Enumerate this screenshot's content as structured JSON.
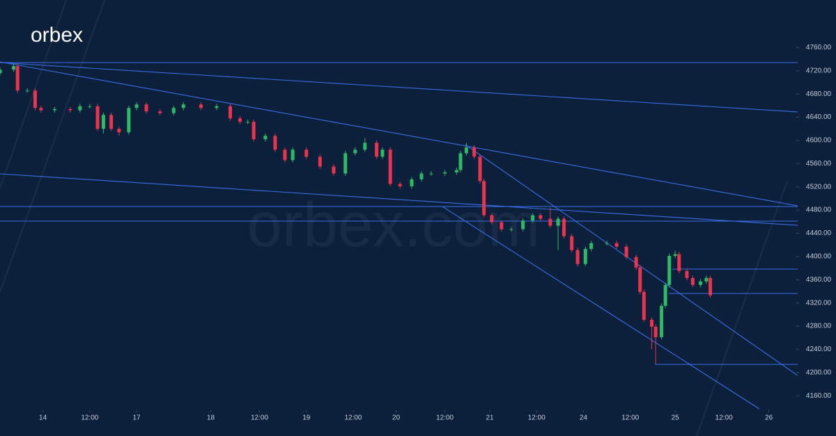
{
  "logo": "orbex",
  "watermark": "orbex.com",
  "chart_data": {
    "type": "candlestick",
    "up_color": "#2fb865",
    "down_color": "#e8344e",
    "xlim": [
      -11,
      192.5
    ],
    "ylim": [
      4135,
      4842
    ],
    "xticks": [
      {
        "value": 0,
        "label": "14"
      },
      {
        "value": 12,
        "label": "12:00"
      },
      {
        "value": 24,
        "label": "17"
      },
      {
        "value": 43,
        "label": "18"
      },
      {
        "value": 55.5,
        "label": "12:00"
      },
      {
        "value": 67.5,
        "label": "19"
      },
      {
        "value": 79.5,
        "label": "12:00"
      },
      {
        "value": 90.5,
        "label": "20"
      },
      {
        "value": 103,
        "label": "12:00"
      },
      {
        "value": 114.5,
        "label": "21"
      },
      {
        "value": 126.5,
        "label": "12:00"
      },
      {
        "value": 138.5,
        "label": "24"
      },
      {
        "value": 150.5,
        "label": "12:00"
      },
      {
        "value": 162,
        "label": "25"
      },
      {
        "value": 174.5,
        "label": "12:00"
      },
      {
        "value": 186,
        "label": "26"
      }
    ],
    "yticks": [
      {
        "value": 4160,
        "label": "4160.00"
      },
      {
        "value": 4200,
        "label": "4200.00"
      },
      {
        "value": 4240,
        "label": "4240.00"
      },
      {
        "value": 4280,
        "label": "4280.00"
      },
      {
        "value": 4320,
        "label": "4320.00"
      },
      {
        "value": 4360,
        "label": "4360.00"
      },
      {
        "value": 4400,
        "label": "4400.00"
      },
      {
        "value": 4440,
        "label": "4440.00"
      },
      {
        "value": 4480,
        "label": "4480.00"
      },
      {
        "value": 4520,
        "label": "4520.00"
      },
      {
        "value": 4560,
        "label": "4560.00"
      },
      {
        "value": 4600,
        "label": "4600.00"
      },
      {
        "value": 4640,
        "label": "4640.00"
      },
      {
        "value": 4680,
        "label": "4680.00"
      },
      {
        "value": 4720,
        "label": "4720.00"
      },
      {
        "value": 4760,
        "label": "4760.00"
      }
    ],
    "x": [
      -11,
      -7.5,
      -6.5,
      -4,
      -2,
      -0.5,
      3,
      7,
      9.5,
      12,
      14,
      15.5,
      17.5,
      19.5,
      22,
      24,
      26.5,
      30,
      33.5,
      36,
      40.5,
      44.5,
      48,
      50.5,
      52.5,
      54,
      57,
      59.5,
      62,
      64,
      67.5,
      71,
      74.5,
      77.5,
      80,
      82.5,
      85.5,
      87,
      89,
      91.5,
      94.5,
      97,
      99.5,
      103,
      106,
      107,
      108.5,
      110.5,
      112,
      113,
      115,
      117.5,
      120,
      123,
      125.5,
      127.5,
      130,
      132,
      133.5,
      135.5,
      137,
      139,
      140.5,
      144.5,
      147,
      149.5,
      152,
      153,
      154,
      156,
      157,
      158.5,
      159.5,
      160.5,
      162,
      163,
      165,
      166.5,
      168.5,
      170,
      171
    ],
    "open": [
      4716,
      4722,
      4728,
      4686,
      4686,
      4656,
      4652,
      4654,
      4652,
      4659,
      4659,
      4620,
      4644,
      4620,
      4614,
      4656,
      4662,
      4650,
      4647,
      4656,
      4662,
      4656,
      4659,
      4638,
      4632,
      4632,
      4602,
      4608,
      4584,
      4566,
      4584,
      4572,
      4555,
      4543,
      4578,
      4584,
      4596,
      4572,
      4584,
      4525,
      4521,
      4533,
      4543,
      4543,
      4545,
      4549,
      4578,
      4588,
      4572,
      4530,
      4471,
      4459,
      4447,
      4447,
      4462,
      4471,
      4465,
      4453,
      4465,
      4435,
      4411,
      4387,
      4413,
      4423,
      4423,
      4417,
      4399,
      4381,
      4339,
      4291,
      4279,
      4261,
      4315,
      4351,
      4401,
      4404,
      4375,
      4363,
      4351,
      4357,
      4363
    ],
    "high": [
      4726,
      4732,
      4732,
      4690,
      4690,
      4660,
      4658,
      4658,
      4663,
      4663,
      4663,
      4648,
      4648,
      4624,
      4660,
      4666,
      4666,
      4654,
      4660,
      4666,
      4666,
      4663,
      4663,
      4642,
      4636,
      4636,
      4612,
      4612,
      4588,
      4588,
      4588,
      4576,
      4559,
      4582,
      4588,
      4604,
      4600,
      4588,
      4588,
      4529,
      4537,
      4547,
      4547,
      4549,
      4553,
      4582,
      4596,
      4592,
      4576,
      4534,
      4475,
      4463,
      4451,
      4466,
      4475,
      4475,
      4484,
      4469,
      4469,
      4439,
      4415,
      4417,
      4427,
      4427,
      4427,
      4421,
      4403,
      4385,
      4343,
      4295,
      4283,
      4319,
      4355,
      4405,
      4410,
      4408,
      4379,
      4367,
      4361,
      4367,
      4367
    ],
    "low": [
      4712,
      4718,
      4682,
      4682,
      4652,
      4648,
      4648,
      4648,
      4648,
      4655,
      4616,
      4612,
      4616,
      4608,
      4610,
      4652,
      4646,
      4643,
      4643,
      4652,
      4652,
      4652,
      4634,
      4628,
      4628,
      4598,
      4598,
      4580,
      4562,
      4562,
      4568,
      4551,
      4539,
      4539,
      4574,
      4580,
      4568,
      4568,
      4521,
      4517,
      4517,
      4529,
      4539,
      4539,
      4541,
      4545,
      4574,
      4568,
      4526,
      4467,
      4455,
      4443,
      4443,
      4443,
      4458,
      4461,
      4449,
      4411,
      4431,
      4407,
      4383,
      4383,
      4409,
      4419,
      4413,
      4395,
      4377,
      4335,
      4287,
      4240,
      4215,
      4257,
      4311,
      4347,
      4397,
      4371,
      4359,
      4347,
      4347,
      4353,
      4329
    ],
    "close": [
      4722,
      4728,
      4686,
      4686,
      4656,
      4652,
      4654,
      4652,
      4659,
      4659,
      4620,
      4644,
      4620,
      4614,
      4656,
      4662,
      4650,
      4647,
      4656,
      4662,
      4656,
      4659,
      4638,
      4632,
      4632,
      4602,
      4608,
      4584,
      4566,
      4584,
      4572,
      4555,
      4543,
      4578,
      4584,
      4596,
      4572,
      4584,
      4525,
      4521,
      4533,
      4543,
      4543,
      4545,
      4549,
      4578,
      4588,
      4572,
      4530,
      4471,
      4459,
      4447,
      4447,
      4462,
      4471,
      4465,
      4453,
      4465,
      4435,
      4411,
      4387,
      4413,
      4423,
      4423,
      4417,
      4399,
      4381,
      4339,
      4291,
      4279,
      4261,
      4315,
      4351,
      4401,
      4404,
      4375,
      4363,
      4351,
      4357,
      4363,
      4333
    ]
  }
}
